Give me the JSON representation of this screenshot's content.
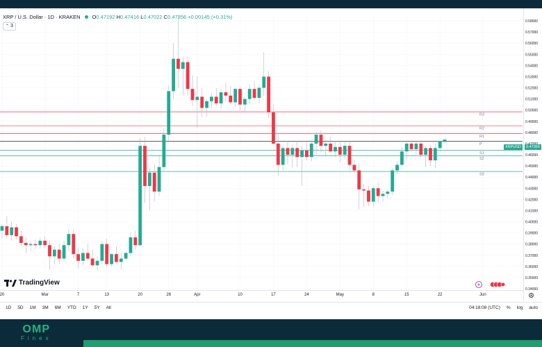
{
  "header": {
    "symbol": "XRP / U.S. Dollar · 1D · KRAKEN",
    "ohlc": [
      {
        "label": "O",
        "value": "0.47192"
      },
      {
        "label": "H",
        "value": "0.47416"
      },
      {
        "label": "L",
        "value": "0.47022"
      },
      {
        "label": "C",
        "value": "0.47356"
      }
    ],
    "change": "+0.00145 (+0.31%)",
    "indicator_count": "3"
  },
  "yaxis": {
    "ticks": [
      "0.58000",
      "0.57000",
      "0.56000",
      "0.55000",
      "0.54000",
      "0.53000",
      "0.52000",
      "0.51000",
      "0.50000",
      "0.49000",
      "0.48000",
      "0.47000",
      "0.46000",
      "0.45000",
      "0.44000",
      "0.43000",
      "0.42000",
      "0.41000",
      "0.40000",
      "0.39000",
      "0.38000",
      "0.37000",
      "0.36000",
      "0.35000",
      "0.34000"
    ],
    "symbol_tag": "XRPUSD",
    "price_tag": "0.47356"
  },
  "xaxis": {
    "ticks": [
      {
        "label": "20",
        "bar": 0
      },
      {
        "label": "Mar",
        "bar": 9
      },
      {
        "label": "7",
        "bar": 16
      },
      {
        "label": "13",
        "bar": 22
      },
      {
        "label": "20",
        "bar": 29
      },
      {
        "label": "26",
        "bar": 35
      },
      {
        "label": "Apr",
        "bar": 41
      },
      {
        "label": "10",
        "bar": 50
      },
      {
        "label": "17",
        "bar": 57
      },
      {
        "label": "24",
        "bar": 64
      },
      {
        "label": "May",
        "bar": 71
      },
      {
        "label": "8",
        "bar": 78
      },
      {
        "label": "15",
        "bar": 85
      },
      {
        "label": "22",
        "bar": 92
      },
      {
        "label": "Jun",
        "bar": 101
      }
    ]
  },
  "pivots": [
    {
      "name": "R3",
      "value": 0.4985,
      "color": "#f23645"
    },
    {
      "name": "R2",
      "value": 0.486,
      "color": "#f23645"
    },
    {
      "name": "R1",
      "value": 0.479,
      "color": "#f23645"
    },
    {
      "name": "P",
      "value": 0.472,
      "color": "#131722"
    },
    {
      "name": "S1",
      "value": 0.464,
      "color": "#22ab94"
    },
    {
      "name": "S2",
      "value": 0.459,
      "color": "#22ab94"
    },
    {
      "name": "S3",
      "value": 0.445,
      "color": "#22ab94"
    }
  ],
  "chart_data": {
    "type": "candlestick",
    "ylim": [
      0.34,
      0.585
    ],
    "candles": [
      {
        "o": 0.392,
        "h": 0.398,
        "l": 0.385,
        "c": 0.396
      },
      {
        "o": 0.396,
        "h": 0.405,
        "l": 0.385,
        "c": 0.388
      },
      {
        "o": 0.388,
        "h": 0.4,
        "l": 0.383,
        "c": 0.395
      },
      {
        "o": 0.395,
        "h": 0.398,
        "l": 0.384,
        "c": 0.387
      },
      {
        "o": 0.387,
        "h": 0.392,
        "l": 0.378,
        "c": 0.381
      },
      {
        "o": 0.381,
        "h": 0.386,
        "l": 0.372,
        "c": 0.379
      },
      {
        "o": 0.379,
        "h": 0.383,
        "l": 0.374,
        "c": 0.38
      },
      {
        "o": 0.38,
        "h": 0.384,
        "l": 0.375,
        "c": 0.379
      },
      {
        "o": 0.379,
        "h": 0.386,
        "l": 0.376,
        "c": 0.383
      },
      {
        "o": 0.383,
        "h": 0.387,
        "l": 0.376,
        "c": 0.379
      },
      {
        "o": 0.379,
        "h": 0.383,
        "l": 0.357,
        "c": 0.369
      },
      {
        "o": 0.369,
        "h": 0.378,
        "l": 0.362,
        "c": 0.375
      },
      {
        "o": 0.375,
        "h": 0.38,
        "l": 0.362,
        "c": 0.367
      },
      {
        "o": 0.367,
        "h": 0.383,
        "l": 0.364,
        "c": 0.379
      },
      {
        "o": 0.379,
        "h": 0.393,
        "l": 0.374,
        "c": 0.389
      },
      {
        "o": 0.389,
        "h": 0.393,
        "l": 0.367,
        "c": 0.371
      },
      {
        "o": 0.371,
        "h": 0.377,
        "l": 0.358,
        "c": 0.365
      },
      {
        "o": 0.365,
        "h": 0.376,
        "l": 0.361,
        "c": 0.372
      },
      {
        "o": 0.372,
        "h": 0.38,
        "l": 0.365,
        "c": 0.367
      },
      {
        "o": 0.367,
        "h": 0.375,
        "l": 0.36,
        "c": 0.361
      },
      {
        "o": 0.361,
        "h": 0.369,
        "l": 0.356,
        "c": 0.365
      },
      {
        "o": 0.365,
        "h": 0.383,
        "l": 0.362,
        "c": 0.38
      },
      {
        "o": 0.38,
        "h": 0.385,
        "l": 0.359,
        "c": 0.362
      },
      {
        "o": 0.362,
        "h": 0.372,
        "l": 0.36,
        "c": 0.371
      },
      {
        "o": 0.371,
        "h": 0.378,
        "l": 0.362,
        "c": 0.364
      },
      {
        "o": 0.364,
        "h": 0.372,
        "l": 0.357,
        "c": 0.367
      },
      {
        "o": 0.367,
        "h": 0.374,
        "l": 0.365,
        "c": 0.372
      },
      {
        "o": 0.372,
        "h": 0.39,
        "l": 0.369,
        "c": 0.386
      },
      {
        "o": 0.386,
        "h": 0.392,
        "l": 0.375,
        "c": 0.379
      },
      {
        "o": 0.379,
        "h": 0.475,
        "l": 0.378,
        "c": 0.468
      },
      {
        "o": 0.468,
        "h": 0.476,
        "l": 0.417,
        "c": 0.432
      },
      {
        "o": 0.432,
        "h": 0.448,
        "l": 0.41,
        "c": 0.444
      },
      {
        "o": 0.444,
        "h": 0.452,
        "l": 0.418,
        "c": 0.427
      },
      {
        "o": 0.427,
        "h": 0.46,
        "l": 0.423,
        "c": 0.449
      },
      {
        "o": 0.449,
        "h": 0.484,
        "l": 0.445,
        "c": 0.478
      },
      {
        "o": 0.478,
        "h": 0.522,
        "l": 0.472,
        "c": 0.517
      },
      {
        "o": 0.517,
        "h": 0.56,
        "l": 0.51,
        "c": 0.546
      },
      {
        "o": 0.546,
        "h": 0.585,
        "l": 0.52,
        "c": 0.537
      },
      {
        "o": 0.537,
        "h": 0.548,
        "l": 0.513,
        "c": 0.543
      },
      {
        "o": 0.543,
        "h": 0.548,
        "l": 0.513,
        "c": 0.519
      },
      {
        "o": 0.519,
        "h": 0.531,
        "l": 0.504,
        "c": 0.509
      },
      {
        "o": 0.509,
        "h": 0.53,
        "l": 0.484,
        "c": 0.512
      },
      {
        "o": 0.512,
        "h": 0.52,
        "l": 0.494,
        "c": 0.502
      },
      {
        "o": 0.502,
        "h": 0.51,
        "l": 0.494,
        "c": 0.508
      },
      {
        "o": 0.508,
        "h": 0.515,
        "l": 0.502,
        "c": 0.512
      },
      {
        "o": 0.512,
        "h": 0.52,
        "l": 0.504,
        "c": 0.506
      },
      {
        "o": 0.506,
        "h": 0.519,
        "l": 0.501,
        "c": 0.516
      },
      {
        "o": 0.516,
        "h": 0.525,
        "l": 0.508,
        "c": 0.513
      },
      {
        "o": 0.513,
        "h": 0.522,
        "l": 0.505,
        "c": 0.507
      },
      {
        "o": 0.507,
        "h": 0.52,
        "l": 0.503,
        "c": 0.519
      },
      {
        "o": 0.519,
        "h": 0.521,
        "l": 0.5,
        "c": 0.505
      },
      {
        "o": 0.505,
        "h": 0.512,
        "l": 0.499,
        "c": 0.51
      },
      {
        "o": 0.51,
        "h": 0.523,
        "l": 0.505,
        "c": 0.519
      },
      {
        "o": 0.519,
        "h": 0.526,
        "l": 0.509,
        "c": 0.511
      },
      {
        "o": 0.511,
        "h": 0.523,
        "l": 0.506,
        "c": 0.52
      },
      {
        "o": 0.52,
        "h": 0.552,
        "l": 0.513,
        "c": 0.53
      },
      {
        "o": 0.53,
        "h": 0.535,
        "l": 0.493,
        "c": 0.498
      },
      {
        "o": 0.498,
        "h": 0.505,
        "l": 0.469,
        "c": 0.47
      },
      {
        "o": 0.47,
        "h": 0.478,
        "l": 0.441,
        "c": 0.451
      },
      {
        "o": 0.451,
        "h": 0.468,
        "l": 0.446,
        "c": 0.466
      },
      {
        "o": 0.466,
        "h": 0.472,
        "l": 0.451,
        "c": 0.46
      },
      {
        "o": 0.46,
        "h": 0.469,
        "l": 0.448,
        "c": 0.466
      },
      {
        "o": 0.466,
        "h": 0.472,
        "l": 0.449,
        "c": 0.458
      },
      {
        "o": 0.458,
        "h": 0.468,
        "l": 0.432,
        "c": 0.464
      },
      {
        "o": 0.464,
        "h": 0.471,
        "l": 0.455,
        "c": 0.458
      },
      {
        "o": 0.458,
        "h": 0.473,
        "l": 0.454,
        "c": 0.47
      },
      {
        "o": 0.47,
        "h": 0.481,
        "l": 0.46,
        "c": 0.478
      },
      {
        "o": 0.478,
        "h": 0.482,
        "l": 0.462,
        "c": 0.468
      },
      {
        "o": 0.468,
        "h": 0.474,
        "l": 0.459,
        "c": 0.47
      },
      {
        "o": 0.47,
        "h": 0.476,
        "l": 0.462,
        "c": 0.463
      },
      {
        "o": 0.463,
        "h": 0.472,
        "l": 0.458,
        "c": 0.467
      },
      {
        "o": 0.467,
        "h": 0.472,
        "l": 0.453,
        "c": 0.46
      },
      {
        "o": 0.46,
        "h": 0.471,
        "l": 0.456,
        "c": 0.468
      },
      {
        "o": 0.468,
        "h": 0.472,
        "l": 0.446,
        "c": 0.451
      },
      {
        "o": 0.451,
        "h": 0.456,
        "l": 0.444,
        "c": 0.446
      },
      {
        "o": 0.446,
        "h": 0.452,
        "l": 0.411,
        "c": 0.429
      },
      {
        "o": 0.429,
        "h": 0.434,
        "l": 0.413,
        "c": 0.428
      },
      {
        "o": 0.428,
        "h": 0.432,
        "l": 0.414,
        "c": 0.418
      },
      {
        "o": 0.418,
        "h": 0.432,
        "l": 0.414,
        "c": 0.43
      },
      {
        "o": 0.43,
        "h": 0.435,
        "l": 0.417,
        "c": 0.423
      },
      {
        "o": 0.423,
        "h": 0.428,
        "l": 0.418,
        "c": 0.425
      },
      {
        "o": 0.425,
        "h": 0.429,
        "l": 0.421,
        "c": 0.427
      },
      {
        "o": 0.427,
        "h": 0.448,
        "l": 0.424,
        "c": 0.446
      },
      {
        "o": 0.446,
        "h": 0.454,
        "l": 0.443,
        "c": 0.451
      },
      {
        "o": 0.451,
        "h": 0.467,
        "l": 0.449,
        "c": 0.463
      },
      {
        "o": 0.463,
        "h": 0.471,
        "l": 0.456,
        "c": 0.47
      },
      {
        "o": 0.47,
        "h": 0.473,
        "l": 0.462,
        "c": 0.465
      },
      {
        "o": 0.465,
        "h": 0.472,
        "l": 0.46,
        "c": 0.47
      },
      {
        "o": 0.47,
        "h": 0.473,
        "l": 0.457,
        "c": 0.46
      },
      {
        "o": 0.46,
        "h": 0.468,
        "l": 0.449,
        "c": 0.466
      },
      {
        "o": 0.466,
        "h": 0.469,
        "l": 0.45,
        "c": 0.455
      },
      {
        "o": 0.455,
        "h": 0.47,
        "l": 0.448,
        "c": 0.466
      },
      {
        "o": 0.466,
        "h": 0.473,
        "l": 0.462,
        "c": 0.472
      },
      {
        "o": 0.472,
        "h": 0.474,
        "l": 0.47,
        "c": 0.4736
      }
    ]
  },
  "branding": {
    "tradingview": "TradingView"
  },
  "bottombar": {
    "ranges": [
      "1D",
      "5D",
      "1M",
      "3M",
      "6M",
      "YTD",
      "1Y",
      "5Y",
      "All"
    ],
    "time": "04:18:08 (UTC)",
    "percent": "%",
    "log": "log",
    "auto": "auto"
  },
  "footer": {
    "logo_big": "OMP",
    "logo_small": "Finex"
  },
  "colors": {
    "up": "#22ab94",
    "down": "#f23645",
    "dark_bg": "#0c2b3a",
    "accent": "#1f9e6e"
  }
}
